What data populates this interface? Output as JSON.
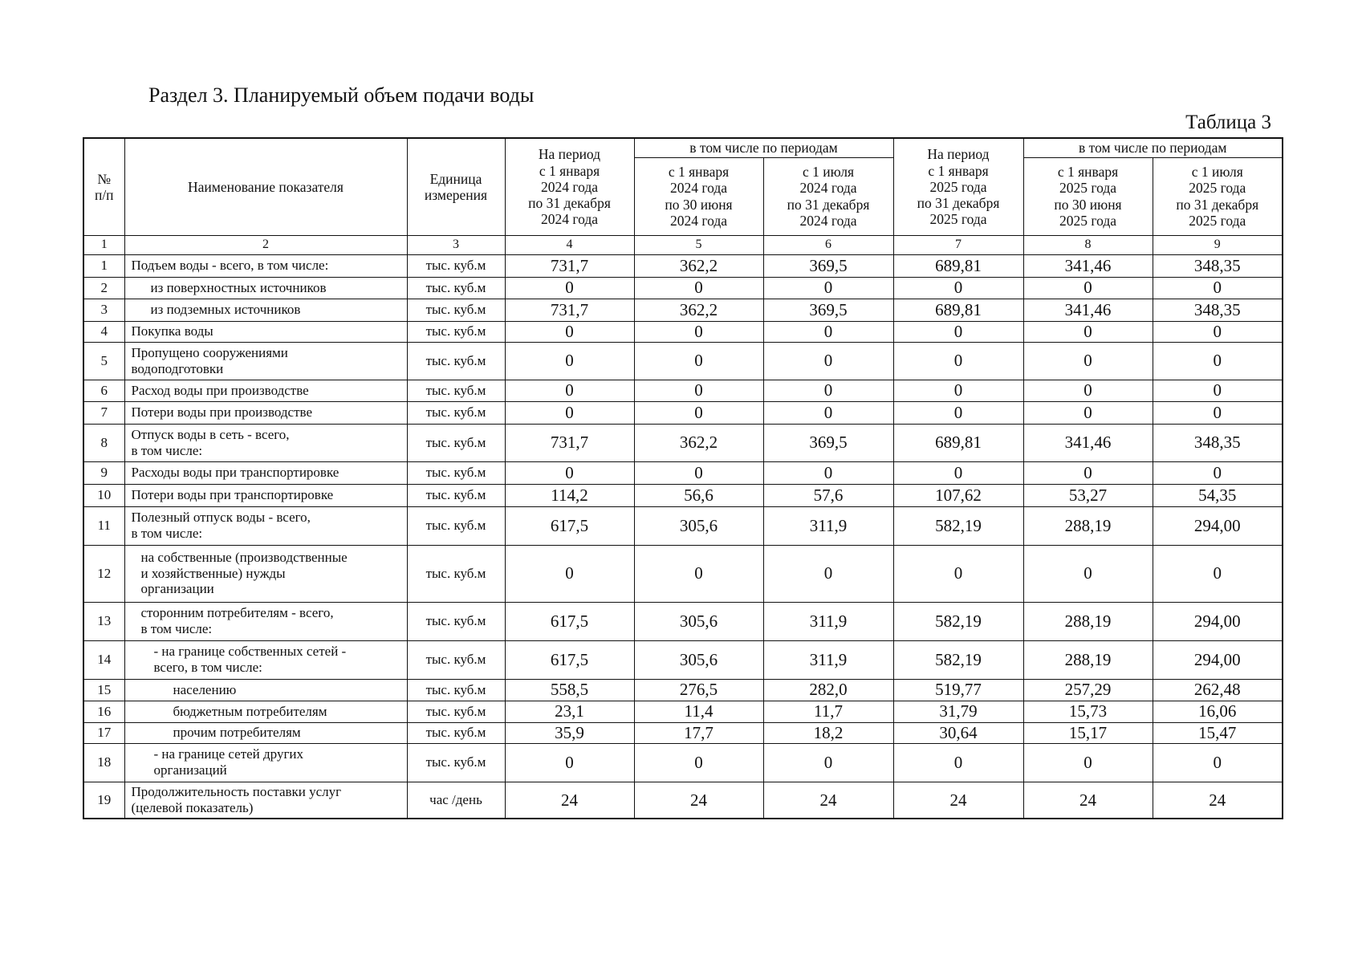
{
  "header": {
    "title": "Раздел 3.  Планируемый объем подачи воды",
    "table_label": "Таблица 3"
  },
  "table": {
    "columns": {
      "num": "№\nп/п",
      "name": "Наименование показателя",
      "unit": "Единица\nизмерения",
      "period_2024": "На период\nс 1 января\n2024 года\nпо 31 декабря\n2024 года",
      "group_2024": "в том числе по периодам",
      "h1_2024": "с 1 января\n2024 года\nпо 30 июня\n2024 года",
      "h2_2024": "с 1 июля\n2024 года\nпо 31 декабря\n2024 года",
      "period_2025": "На период\nс 1 января\n2025 года\nпо 31 декабря\n2025 года",
      "group_2025": "в том числе по периодам",
      "h1_2025": "с 1 января\n2025 года\nпо 30 июня\n2025 года",
      "h2_2025": "с 1 июля\n2025 года\nпо 31 декабря\n2025 года"
    },
    "column_numbers": [
      "1",
      "2",
      "3",
      "4",
      "5",
      "6",
      "7",
      "8",
      "9"
    ],
    "rows": [
      [
        "1",
        "Подъем воды - всего, в том числе:",
        "тыс. куб.м",
        "731,7",
        "362,2",
        "369,5",
        "689,81",
        "341,46",
        "348,35"
      ],
      [
        "2",
        "из поверхностных источников",
        "тыс. куб.м",
        "0",
        "0",
        "0",
        "0",
        "0",
        "0"
      ],
      [
        "3",
        "из подземных источников",
        "тыс. куб.м",
        "731,7",
        "362,2",
        "369,5",
        "689,81",
        "341,46",
        "348,35"
      ],
      [
        "4",
        "Покупка воды",
        "тыс. куб.м",
        "0",
        "0",
        "0",
        "0",
        "0",
        "0"
      ],
      [
        "5",
        "Пропущено сооружениями\nводоподготовки",
        "тыс. куб.м",
        "0",
        "0",
        "0",
        "0",
        "0",
        "0"
      ],
      [
        "6",
        "Расход воды при производстве",
        "тыс. куб.м",
        "0",
        "0",
        "0",
        "0",
        "0",
        "0"
      ],
      [
        "7",
        "Потери воды при производстве",
        "тыс. куб.м",
        "0",
        "0",
        "0",
        "0",
        "0",
        "0"
      ],
      [
        "8",
        "Отпуск воды в сеть - всего,\nв том числе:",
        "тыс. куб.м",
        "731,7",
        "362,2",
        "369,5",
        "689,81",
        "341,46",
        "348,35"
      ],
      [
        "9",
        "Расходы воды при транспортировке",
        "тыс. куб.м",
        "0",
        "0",
        "0",
        "0",
        "0",
        "0"
      ],
      [
        "10",
        "Потери воды при транспортировке",
        "тыс. куб.м",
        "114,2",
        "56,6",
        "57,6",
        "107,62",
        "53,27",
        "54,35"
      ],
      [
        "11",
        "Полезный отпуск воды - всего,\nв том числе:",
        "тыс. куб.м",
        "617,5",
        "305,6",
        "311,9",
        "582,19",
        "288,19",
        "294,00"
      ],
      [
        "12",
        "на собственные (производственные\nи хозяйственные) нужды\nорганизации",
        "тыс. куб.м",
        "0",
        "0",
        "0",
        "0",
        "0",
        "0"
      ],
      [
        "13",
        "сторонним потребителям - всего,\nв том числе:",
        "тыс. куб.м",
        "617,5",
        "305,6",
        "311,9",
        "582,19",
        "288,19",
        "294,00"
      ],
      [
        "14",
        "- на границе собственных сетей -\nвсего, в том числе:",
        "тыс. куб.м",
        "617,5",
        "305,6",
        "311,9",
        "582,19",
        "288,19",
        "294,00"
      ],
      [
        "15",
        "населению",
        "тыс. куб.м",
        "558,5",
        "276,5",
        "282,0",
        "519,77",
        "257,29",
        "262,48"
      ],
      [
        "16",
        "бюджетным потребителям",
        "тыс. куб.м",
        "23,1",
        "11,4",
        "11,7",
        "31,79",
        "15,73",
        "16,06"
      ],
      [
        "17",
        "прочим потребителям",
        "тыс. куб.м",
        "35,9",
        "17,7",
        "18,2",
        "30,64",
        "15,17",
        "15,47"
      ],
      [
        "18",
        "- на границе сетей других\nорганизаций",
        "тыс. куб.м",
        "0",
        "0",
        "0",
        "0",
        "0",
        "0"
      ],
      [
        "19",
        "Продолжительность поставки услуг\n(целевой показатель)",
        "час /день",
        "24",
        "24",
        "24",
        "24",
        "24",
        "24"
      ]
    ]
  }
}
